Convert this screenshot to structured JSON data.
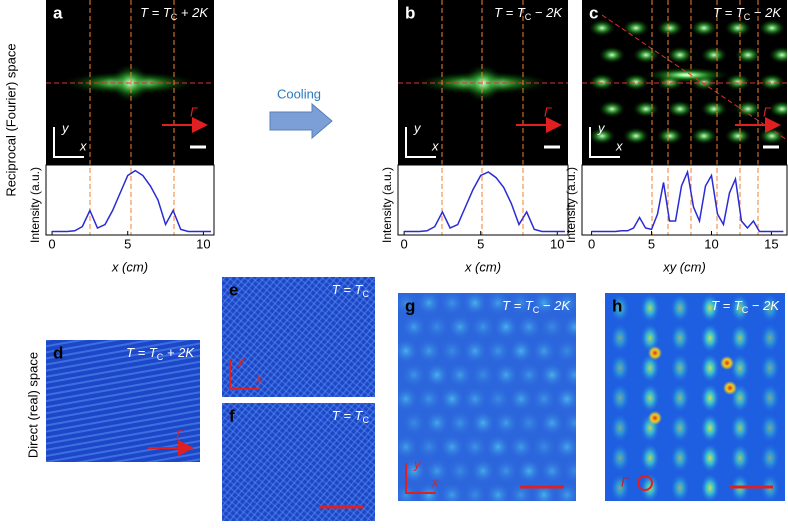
{
  "side_labels": {
    "reciprocal": "Reciprocal (Fourier) space",
    "direct": "Direct (real) space"
  },
  "cooling": "Cooling",
  "panels": [
    {
      "letter": "a",
      "temp": {
        "pre": "T = T",
        "sub": "C",
        "post": " + 2K"
      },
      "axes": [
        "y",
        "x"
      ],
      "gamma": "Γ"
    },
    {
      "letter": "b",
      "temp": {
        "pre": "T = T",
        "sub": "C",
        "post": " − 2K"
      },
      "axes": [
        "y",
        "x"
      ],
      "gamma": "Γ"
    },
    {
      "letter": "c",
      "temp": {
        "pre": "T = T",
        "sub": "C",
        "post": " − 2K"
      },
      "axes": [
        "y",
        "x"
      ],
      "gamma": "Γ"
    },
    {
      "letter": "d",
      "temp": {
        "pre": "T = T",
        "sub": "C",
        "post": " + 2K"
      },
      "gamma": "Γ"
    },
    {
      "letter": "e",
      "temp": {
        "pre": "T = T",
        "sub": "C"
      },
      "axes": [
        "y",
        "x"
      ]
    },
    {
      "letter": "f",
      "temp": {
        "pre": "T = T",
        "sub": "C"
      }
    },
    {
      "letter": "g",
      "temp": {
        "pre": "T = T",
        "sub": "C",
        "post": " − 2K"
      },
      "axes": [
        "y",
        "x"
      ]
    },
    {
      "letter": "h",
      "temp": {
        "pre": "T = T",
        "sub": "C",
        "post": " − 2K"
      },
      "gamma": "Γ"
    }
  ],
  "chart_data": [
    {
      "type": "line",
      "x_label": "x (cm)",
      "y_label": "Intensity (a.u.)",
      "x": [
        0,
        0.5,
        1,
        1.5,
        2,
        2.5,
        3,
        3.5,
        4,
        4.5,
        5,
        5.5,
        6,
        6.5,
        7,
        7.5,
        8,
        8.5,
        9,
        9.5,
        10,
        10.5
      ],
      "series": [
        {
          "color": "#2b2bd6",
          "values": [
            0.05,
            0.05,
            0.05,
            0.06,
            0.12,
            0.35,
            0.1,
            0.15,
            0.35,
            0.6,
            0.85,
            0.92,
            0.85,
            0.7,
            0.5,
            0.15,
            0.35,
            0.08,
            0.05,
            0.05,
            0.05,
            0.05
          ]
        }
      ],
      "xlim": [
        -0.4,
        10.7
      ],
      "xticks": [
        0,
        5,
        10
      ],
      "ylim": [
        0,
        1
      ]
    },
    {
      "type": "line",
      "x_label": "x (cm)",
      "y_label": "Intensity (a.u.)",
      "x": [
        0,
        0.5,
        1,
        1.5,
        2,
        2.5,
        3,
        3.5,
        4,
        4.5,
        5,
        5.5,
        6,
        6.5,
        7,
        7.5,
        8,
        8.5,
        9,
        9.5,
        10,
        10.5
      ],
      "series": [
        {
          "color": "#2b2bd6",
          "values": [
            0.05,
            0.05,
            0.05,
            0.06,
            0.12,
            0.33,
            0.1,
            0.15,
            0.4,
            0.65,
            0.85,
            0.9,
            0.82,
            0.68,
            0.45,
            0.15,
            0.33,
            0.08,
            0.05,
            0.05,
            0.05,
            0.05
          ]
        }
      ],
      "xlim": [
        -0.4,
        10.7
      ],
      "xticks": [
        0,
        5,
        10
      ],
      "ylim": [
        0,
        1
      ]
    },
    {
      "type": "line",
      "x_label": "xy (cm)",
      "y_label": "Intensity (a.u.)",
      "x": [
        0,
        0.5,
        1,
        1.5,
        2,
        2.5,
        3,
        3.5,
        4,
        4.5,
        5,
        5.5,
        6,
        6.5,
        7,
        7.5,
        8,
        8.5,
        9,
        9.5,
        10,
        10.5,
        11,
        11.5,
        12,
        12.5,
        13,
        13.5,
        14,
        14.5,
        15,
        15.5,
        16
      ],
      "series": [
        {
          "color": "#2b2bd6",
          "values": [
            0.05,
            0.05,
            0.05,
            0.05,
            0.05,
            0.06,
            0.06,
            0.1,
            0.25,
            0.1,
            0.08,
            0.3,
            0.75,
            0.2,
            0.2,
            0.7,
            0.9,
            0.4,
            0.2,
            0.7,
            0.85,
            0.3,
            0.15,
            0.6,
            0.8,
            0.2,
            0.1,
            0.2,
            0.05,
            0.05,
            0.05,
            0.05,
            0.05
          ]
        }
      ],
      "xlim": [
        -0.8,
        16.3
      ],
      "xticks": [
        0,
        5,
        10,
        15
      ],
      "ylim": [
        0,
        1
      ]
    }
  ]
}
